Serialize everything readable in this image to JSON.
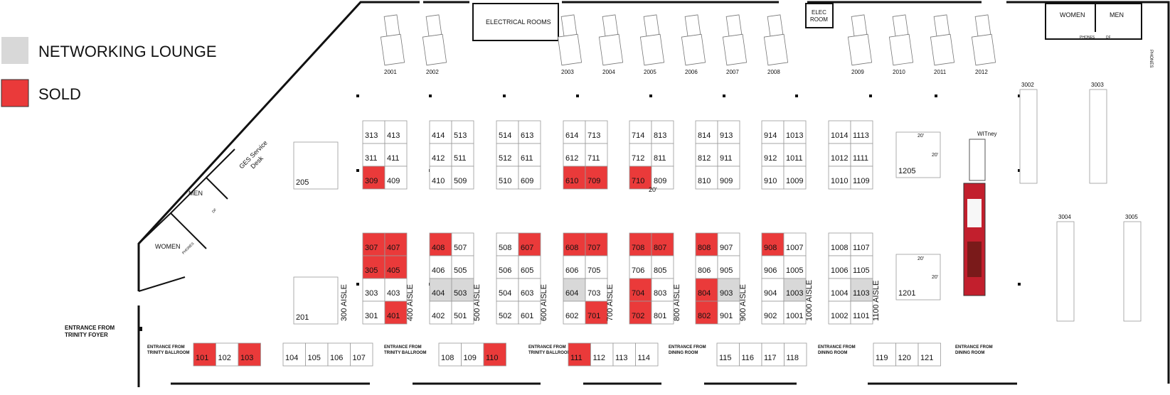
{
  "legend": [
    {
      "label": "NETWORKING LOUNGE",
      "color": "#d8d8d8"
    },
    {
      "label": "SOLD",
      "color": "#ea3a3a"
    }
  ],
  "colors": {
    "lounge": "#d8d8d8",
    "sold": "#ea3a3a",
    "wall": "#111111",
    "booth_border": "#9a9a9a"
  },
  "rooms": {
    "electrical": "ELECTRICAL ROOMS",
    "elec": [
      "ELEC",
      "ROOM"
    ],
    "women_top": "WOMEN",
    "men_top": "MEN",
    "phones_top": "PHONES",
    "df_top": "DF",
    "men_left": "MEN",
    "women_left": "WOMEN",
    "phones_left": "PHONES",
    "df_left": "DF",
    "phones_right": "PHONES",
    "ges": [
      "GES Service",
      "Desk"
    ],
    "witney": "WITney"
  },
  "entrances": {
    "trinity_foyer": [
      "ENTRANCE FROM",
      "TRINITY FOYER"
    ],
    "ballroom_1": [
      "ENTRANCE FROM",
      "TRINITY BALLROOM"
    ],
    "ballroom_2": [
      "ENTRANCE FROM",
      "TRINITY BALLROOM"
    ],
    "ballroom_3": [
      "ENTRANCE FROM",
      "TRINITY BALLROOM"
    ],
    "dining_1": [
      "ENTRANCE FROM",
      "DINING ROOM"
    ],
    "dining_2": [
      "ENTRANCE FROM",
      "DINING ROOM"
    ],
    "dining_3": [
      "ENTRANCE FROM",
      "DINING ROOM"
    ]
  },
  "aisles": [
    "300 AISLE",
    "400 AISLE",
    "500 AISLE",
    "600 AISLE",
    "700 AISLE",
    "800 AISLE",
    "900 AISLE",
    "1000 AISLE",
    "1100 AISLE"
  ],
  "dimensions": {
    "center": "20'",
    "b1205_a": "20'",
    "b1205_b": "20'",
    "b1201_a": "20'",
    "b1201_b": "20'"
  },
  "trucks": [
    "2001",
    "2002",
    "2003",
    "2004",
    "2005",
    "2006",
    "2007",
    "2008",
    "2009",
    "2010",
    "2011",
    "2012"
  ],
  "booths": [
    {
      "id": "313",
      "status": "open"
    },
    {
      "id": "413",
      "status": "open"
    },
    {
      "id": "311",
      "status": "open"
    },
    {
      "id": "411",
      "status": "open"
    },
    {
      "id": "309",
      "status": "sold"
    },
    {
      "id": "409",
      "status": "open"
    },
    {
      "id": "414",
      "status": "open"
    },
    {
      "id": "513",
      "status": "open"
    },
    {
      "id": "412",
      "status": "open"
    },
    {
      "id": "511",
      "status": "open"
    },
    {
      "id": "410",
      "status": "open"
    },
    {
      "id": "509",
      "status": "open"
    },
    {
      "id": "514",
      "status": "open"
    },
    {
      "id": "613",
      "status": "open"
    },
    {
      "id": "512",
      "status": "open"
    },
    {
      "id": "611",
      "status": "open"
    },
    {
      "id": "510",
      "status": "open"
    },
    {
      "id": "609",
      "status": "open"
    },
    {
      "id": "614",
      "status": "open"
    },
    {
      "id": "713",
      "status": "open"
    },
    {
      "id": "612",
      "status": "open"
    },
    {
      "id": "711",
      "status": "open"
    },
    {
      "id": "610",
      "status": "sold"
    },
    {
      "id": "709",
      "status": "sold"
    },
    {
      "id": "714",
      "status": "open"
    },
    {
      "id": "813",
      "status": "open"
    },
    {
      "id": "712",
      "status": "open"
    },
    {
      "id": "811",
      "status": "open"
    },
    {
      "id": "710",
      "status": "sold"
    },
    {
      "id": "809",
      "status": "open"
    },
    {
      "id": "814",
      "status": "open"
    },
    {
      "id": "913",
      "status": "open"
    },
    {
      "id": "812",
      "status": "open"
    },
    {
      "id": "911",
      "status": "open"
    },
    {
      "id": "810",
      "status": "open"
    },
    {
      "id": "909",
      "status": "open"
    },
    {
      "id": "914",
      "status": "open"
    },
    {
      "id": "1013",
      "status": "open"
    },
    {
      "id": "912",
      "status": "open"
    },
    {
      "id": "1011",
      "status": "open"
    },
    {
      "id": "910",
      "status": "open"
    },
    {
      "id": "1009",
      "status": "open"
    },
    {
      "id": "1014",
      "status": "open"
    },
    {
      "id": "1113",
      "status": "open"
    },
    {
      "id": "1012",
      "status": "open"
    },
    {
      "id": "1111",
      "status": "open"
    },
    {
      "id": "1010",
      "status": "open"
    },
    {
      "id": "1109",
      "status": "open"
    },
    {
      "id": "205",
      "status": "open"
    },
    {
      "id": "201",
      "status": "open"
    },
    {
      "id": "1205",
      "status": "open"
    },
    {
      "id": "1201",
      "status": "open"
    },
    {
      "id": "307",
      "status": "sold"
    },
    {
      "id": "407",
      "status": "sold"
    },
    {
      "id": "305",
      "status": "sold"
    },
    {
      "id": "405",
      "status": "sold"
    },
    {
      "id": "303",
      "status": "open"
    },
    {
      "id": "403",
      "status": "open"
    },
    {
      "id": "301",
      "status": "open"
    },
    {
      "id": "401",
      "status": "sold"
    },
    {
      "id": "408",
      "status": "sold"
    },
    {
      "id": "507",
      "status": "open"
    },
    {
      "id": "406",
      "status": "open"
    },
    {
      "id": "505",
      "status": "open"
    },
    {
      "id": "404",
      "status": "lounge"
    },
    {
      "id": "503",
      "status": "lounge"
    },
    {
      "id": "402",
      "status": "open"
    },
    {
      "id": "501",
      "status": "open"
    },
    {
      "id": "508",
      "status": "open"
    },
    {
      "id": "607",
      "status": "sold"
    },
    {
      "id": "506",
      "status": "open"
    },
    {
      "id": "605",
      "status": "open"
    },
    {
      "id": "504",
      "status": "open"
    },
    {
      "id": "603",
      "status": "open"
    },
    {
      "id": "502",
      "status": "open"
    },
    {
      "id": "601",
      "status": "open"
    },
    {
      "id": "608",
      "status": "sold"
    },
    {
      "id": "707",
      "status": "sold"
    },
    {
      "id": "606",
      "status": "open"
    },
    {
      "id": "705",
      "status": "open"
    },
    {
      "id": "604",
      "status": "lounge"
    },
    {
      "id": "703",
      "status": "open"
    },
    {
      "id": "602",
      "status": "open"
    },
    {
      "id": "701",
      "status": "sold"
    },
    {
      "id": "708",
      "status": "sold"
    },
    {
      "id": "807",
      "status": "sold"
    },
    {
      "id": "706",
      "status": "open"
    },
    {
      "id": "805",
      "status": "open"
    },
    {
      "id": "704",
      "status": "sold"
    },
    {
      "id": "803",
      "status": "open"
    },
    {
      "id": "702",
      "status": "sold"
    },
    {
      "id": "801",
      "status": "open"
    },
    {
      "id": "808",
      "status": "sold"
    },
    {
      "id": "907",
      "status": "open"
    },
    {
      "id": "806",
      "status": "open"
    },
    {
      "id": "905",
      "status": "open"
    },
    {
      "id": "804",
      "status": "sold"
    },
    {
      "id": "903",
      "status": "lounge"
    },
    {
      "id": "802",
      "status": "sold"
    },
    {
      "id": "901",
      "status": "open"
    },
    {
      "id": "908",
      "status": "sold"
    },
    {
      "id": "1007",
      "status": "open"
    },
    {
      "id": "906",
      "status": "open"
    },
    {
      "id": "1005",
      "status": "open"
    },
    {
      "id": "904",
      "status": "open"
    },
    {
      "id": "1003",
      "status": "lounge"
    },
    {
      "id": "902",
      "status": "open"
    },
    {
      "id": "1001",
      "status": "open"
    },
    {
      "id": "1008",
      "status": "open"
    },
    {
      "id": "1107",
      "status": "open"
    },
    {
      "id": "1006",
      "status": "open"
    },
    {
      "id": "1105",
      "status": "open"
    },
    {
      "id": "1004",
      "status": "open"
    },
    {
      "id": "1103",
      "status": "lounge"
    },
    {
      "id": "1002",
      "status": "open"
    },
    {
      "id": "1101",
      "status": "open"
    },
    {
      "id": "101",
      "status": "sold"
    },
    {
      "id": "102",
      "status": "open"
    },
    {
      "id": "103",
      "status": "sold"
    },
    {
      "id": "104",
      "status": "open"
    },
    {
      "id": "105",
      "status": "open"
    },
    {
      "id": "106",
      "status": "open"
    },
    {
      "id": "107",
      "status": "open"
    },
    {
      "id": "108",
      "status": "open"
    },
    {
      "id": "109",
      "status": "open"
    },
    {
      "id": "110",
      "status": "sold"
    },
    {
      "id": "111",
      "status": "sold"
    },
    {
      "id": "112",
      "status": "open"
    },
    {
      "id": "113",
      "status": "open"
    },
    {
      "id": "114",
      "status": "open"
    },
    {
      "id": "115",
      "status": "open"
    },
    {
      "id": "116",
      "status": "open"
    },
    {
      "id": "117",
      "status": "open"
    },
    {
      "id": "118",
      "status": "open"
    },
    {
      "id": "119",
      "status": "open"
    },
    {
      "id": "120",
      "status": "open"
    },
    {
      "id": "121",
      "status": "open"
    },
    {
      "id": "3002",
      "status": "open"
    },
    {
      "id": "3003",
      "status": "open"
    },
    {
      "id": "3004",
      "status": "open"
    },
    {
      "id": "3005",
      "status": "open"
    }
  ]
}
